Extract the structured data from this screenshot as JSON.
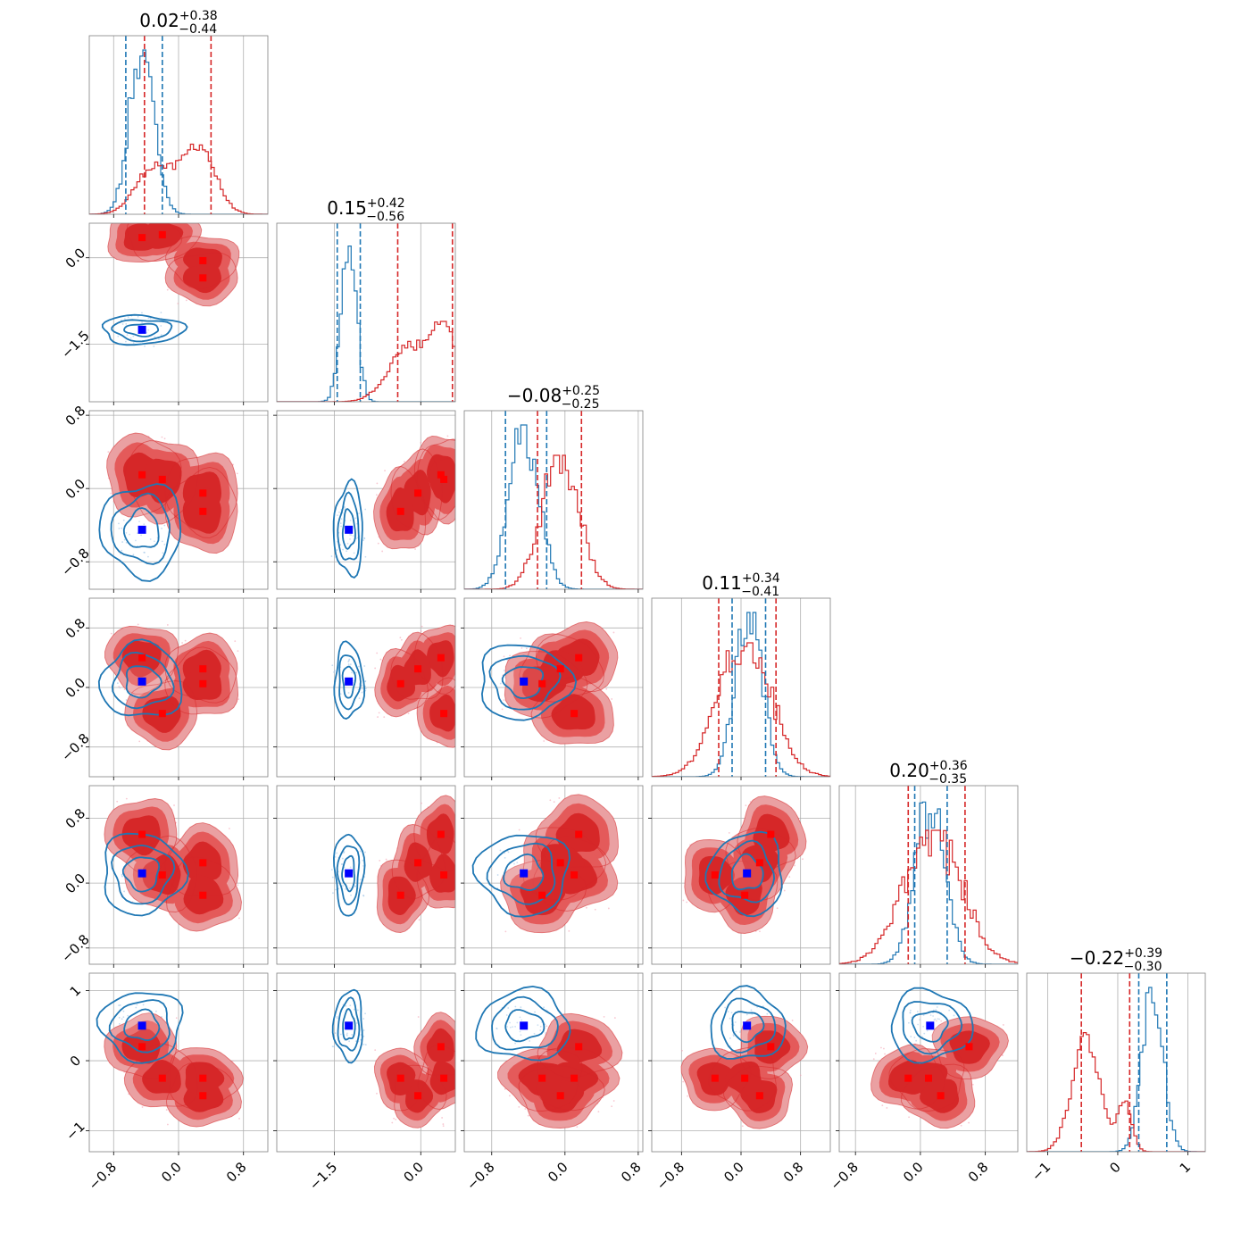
{
  "colors": {
    "red": "#d62728",
    "red_mid": "#e45a5a",
    "red_light": "#eaa0a2",
    "blue": "#1f77b4",
    "blue_marker": "#0000ff",
    "red_marker": "#ff0000",
    "grid": "#b0b0b0",
    "frame": "#808080"
  },
  "chart_data": {
    "type": "corner",
    "n_params": 6,
    "grid": true,
    "series": [
      {
        "color_key": "blue"
      },
      {
        "color_key": "red"
      }
    ],
    "params": [
      {
        "index": 0,
        "range": [
          -1.1,
          1.1
        ],
        "xticks": [
          -0.8,
          0.0,
          0.8
        ],
        "xtick_labels": [
          "−0.8",
          "0.0",
          "0.8"
        ],
        "yticks": [],
        "ytick_labels": [],
        "title": {
          "main": "0.02",
          "sup": "+0.38",
          "sub": "−0.44"
        },
        "quantile_lines": {
          "blue": [
            -0.65,
            -0.2
          ],
          "red": [
            -0.42,
            0.4
          ]
        }
      },
      {
        "index": 1,
        "range": [
          -2.5,
          0.6
        ],
        "xticks": [
          -1.5,
          0.0
        ],
        "xtick_labels": [
          "−1.5",
          "0.0"
        ],
        "yticks": [
          0.0,
          -1.5
        ],
        "ytick_labels": [
          "0.0",
          "−1.5"
        ],
        "title": {
          "main": "0.15",
          "sup": "+0.42",
          "sub": "−0.56"
        },
        "quantile_lines": {
          "blue": [
            -1.45,
            -1.05
          ],
          "red": [
            -0.4,
            0.55
          ]
        }
      },
      {
        "index": 2,
        "range": [
          -1.1,
          0.85
        ],
        "xticks": [
          -0.8,
          0.0,
          0.8
        ],
        "xtick_labels": [
          "−0.8",
          "0.0",
          "0.8"
        ],
        "yticks": [
          0.8,
          0.0,
          -0.8
        ],
        "ytick_labels": [
          "0.8",
          "0.0",
          "−0.8"
        ],
        "title": {
          "main": "−0.08",
          "sup": "+0.25",
          "sub": "−0.25"
        },
        "quantile_lines": {
          "blue": [
            -0.65,
            -0.2
          ],
          "red": [
            -0.3,
            0.18
          ]
        }
      },
      {
        "index": 3,
        "range": [
          -1.2,
          1.2
        ],
        "xticks": [
          -0.8,
          0.0,
          0.8
        ],
        "xtick_labels": [
          "−0.8",
          "0.0",
          "0.8"
        ],
        "yticks": [
          0.8,
          0.0,
          -0.8
        ],
        "ytick_labels": [
          "0.8",
          "0.0",
          "−0.8"
        ],
        "title": {
          "main": "0.11",
          "sup": "+0.34",
          "sub": "−0.41"
        },
        "quantile_lines": {
          "blue": [
            -0.12,
            0.33
          ],
          "red": [
            -0.3,
            0.47
          ]
        }
      },
      {
        "index": 4,
        "range": [
          -1.0,
          1.2
        ],
        "xticks": [
          -0.8,
          0.0,
          0.8
        ],
        "xtick_labels": [
          "−0.8",
          "0.0",
          "0.8"
        ],
        "yticks": [
          0.8,
          0.0,
          -0.8
        ],
        "ytick_labels": [
          "0.8",
          "0.0",
          "−0.8"
        ],
        "title": {
          "main": "0.20",
          "sup": "+0.36",
          "sub": "−0.35"
        },
        "quantile_lines": {
          "blue": [
            -0.07,
            0.33
          ],
          "red": [
            -0.15,
            0.55
          ]
        }
      },
      {
        "index": 5,
        "range": [
          -1.3,
          1.25
        ],
        "xticks": [
          -1,
          0,
          1
        ],
        "xtick_labels": [
          "−1",
          "0",
          "1"
        ],
        "yticks": [
          1,
          0,
          -1
        ],
        "ytick_labels": [
          "1",
          "0",
          "−1"
        ],
        "title": {
          "main": "−0.22",
          "sup": "+0.39",
          "sub": "−0.30"
        },
        "quantile_lines": {
          "blue": [
            0.3,
            0.7
          ],
          "red": [
            -0.52,
            0.17
          ]
        }
      }
    ],
    "blue_mode": [
      -0.45,
      -1.25,
      -0.45,
      0.08,
      0.12,
      0.5
    ],
    "red_modes": [
      [
        -0.45,
        0.35,
        0.15,
        0.4,
        0.6,
        0.2
      ],
      [
        -0.2,
        0.4,
        0.1,
        -0.35,
        0.1,
        -0.25
      ],
      [
        0.3,
        -0.05,
        -0.05,
        0.25,
        0.25,
        -0.5
      ],
      [
        0.3,
        -0.35,
        -0.25,
        0.05,
        -0.15,
        -0.25
      ]
    ],
    "diag_hist": [
      {
        "blue": {
          "mean": -0.45,
          "sd": 0.15
        },
        "red": {
          "mean": -0.05,
          "sd": 0.38
        }
      },
      {
        "blue": {
          "mean": -1.25,
          "sd": 0.13
        },
        "red": {
          "mean": 0.05,
          "sd": 0.45
        }
      },
      {
        "blue": {
          "mean": -0.45,
          "sd": 0.16
        },
        "red": {
          "mean": -0.05,
          "sd": 0.2
        }
      },
      {
        "blue": {
          "mean": 0.1,
          "sd": 0.18
        },
        "red": {
          "mean": 0.05,
          "sd": 0.35
        }
      },
      {
        "blue": {
          "mean": 0.12,
          "sd": 0.18
        },
        "red": {
          "mean": 0.15,
          "sd": 0.35
        }
      },
      {
        "blue": {
          "mean": 0.5,
          "sd": 0.15
        },
        "red": {
          "mean": -0.35,
          "sd": 0.22
        }
      }
    ]
  }
}
